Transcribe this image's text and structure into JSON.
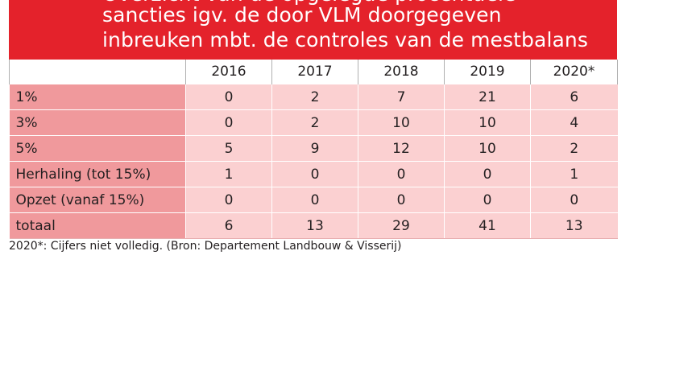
{
  "header": {
    "title_lines": [
      "Overzicht van de opgelegde procentuele",
      "sancties igv. de door VLM doorgegeven",
      "inbreuken mbt. de controles van de mestbalans"
    ]
  },
  "footnote": "2020*: Cijfers niet volledig. (Bron: Departement Landbouw & Visserij)",
  "chart_data": {
    "type": "table",
    "title": "sancties igv. de door VLM doorgegeven inbreuken mbt. de controles van de mestbalans",
    "columns": [
      "2016",
      "2017",
      "2018",
      "2019",
      "2020*"
    ],
    "rows": [
      {
        "label": "1%",
        "values": [
          "0",
          "2",
          "7",
          "21",
          "6"
        ]
      },
      {
        "label": "3%",
        "values": [
          "0",
          "2",
          "10",
          "10",
          "4"
        ]
      },
      {
        "label": "5%",
        "values": [
          "5",
          "9",
          "12",
          "10",
          "2"
        ]
      },
      {
        "label": "Herhaling (tot 15%)",
        "values": [
          "1",
          "0",
          "0",
          "0",
          "1"
        ]
      },
      {
        "label": "Opzet (vanaf 15%)",
        "values": [
          "0",
          "0",
          "0",
          "0",
          "0"
        ]
      },
      {
        "label": "totaal",
        "values": [
          "6",
          "13",
          "29",
          "41",
          "13"
        ]
      }
    ],
    "colors": {
      "header_bg": "#e4222b",
      "label_bg": "#f0999c",
      "cell_bg": "#fbd0d1"
    }
  }
}
